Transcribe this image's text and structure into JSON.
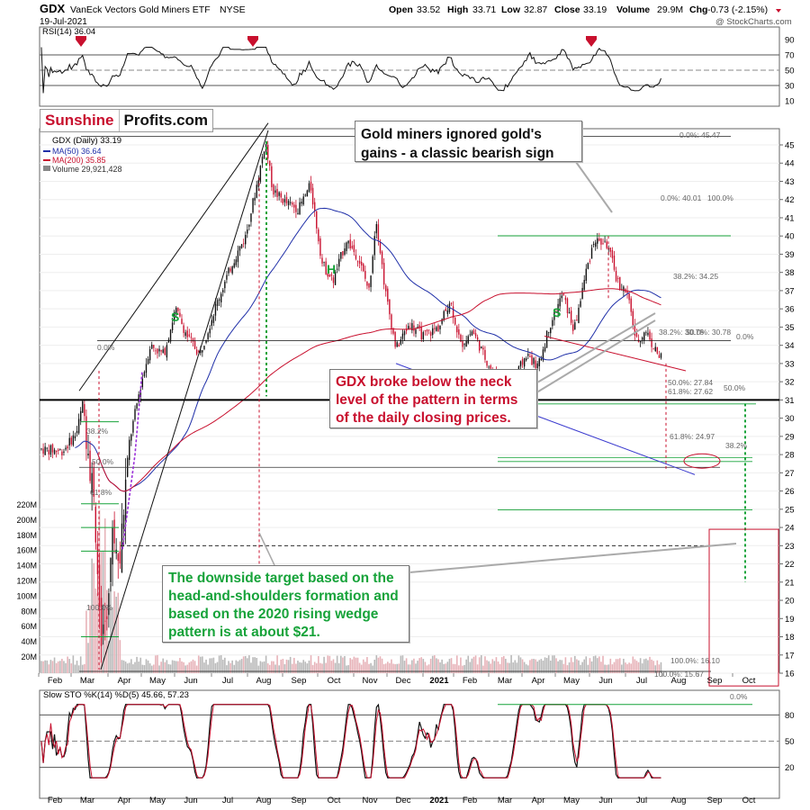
{
  "header": {
    "ticker": "GDX",
    "name": "VanEck Vectors Gold Miners ETF",
    "exchange": "NYSE",
    "date": "19-Jul-2021",
    "open_label": "Open",
    "open": "33.52",
    "high_label": "High",
    "high": "33.71",
    "low_label": "Low",
    "low": "32.87",
    "close_label": "Close",
    "close": "33.19",
    "volume_label": "Volume",
    "volume": "29.9M",
    "chg_label": "Chg",
    "chg": "-0.73 (-2.15%)",
    "watermark": "@ StockCharts.com"
  },
  "logo": {
    "part1": "Sunshine",
    "part2": "Profits.com"
  },
  "legends": {
    "rsi": "RSI(14) 36.04",
    "main": "GDX (Daily) 33.19",
    "ma50": "MA(50) 36.64",
    "ma200": "MA(200) 35.85",
    "volume": "Volume 29,921,428",
    "sto": "Slow STO %K(14) %D(5) 45.66, 57.23"
  },
  "callouts": {
    "top": "Gold miners ignored gold's gains - a classic bearish sign",
    "mid": "GDX broke below the neck level of the pattern in terms of the daily closing prices.",
    "bottom": "The downside target based on the head-and-shoulders formation and based on the 2020 rising wedge pattern is at about $21."
  },
  "pattern_labels": [
    "S",
    "H",
    "S"
  ],
  "fib_labels": {
    "a1": "0.0%: 45.47",
    "a2": "0.0%: 40.01",
    "a3": "100.0%",
    "a4": "38.2%: 34.25",
    "a5": "38.2%: 30.78",
    "a6": "50.0%: 30.78",
    "a7": "0.0%",
    "a8": "50.0%: 27.84",
    "a9": "61.8%: 27.62",
    "a10": "50.0%",
    "a11": "61.8%: 24.97",
    "a12": "38.2%",
    "a13": "100.0%: 16.10",
    "a14": "100.0%: 15.67",
    "b1": "0.0%",
    "b2": "38.2%",
    "b3": "50.0%",
    "b4": "61.8%",
    "b5": "100.0%",
    "sto_fib": "0.0%"
  },
  "colors": {
    "up": "#111111",
    "down": "#c8102e",
    "ma50": "#1f2fa8",
    "ma200": "#c8102e",
    "green": "#17a33a",
    "purple": "#9b30d9"
  },
  "chart_data": {
    "type": "candlestick",
    "title": "GDX VanEck Vectors Gold Miners ETF NYSE",
    "x_ticks": [
      "Feb",
      "Mar",
      "Apr",
      "May",
      "Jun",
      "Jul",
      "Aug",
      "Sep",
      "Oct",
      "Nov",
      "Dec",
      "2021",
      "Feb",
      "Mar",
      "Apr",
      "May",
      "Jun",
      "Jul",
      "Aug",
      "Sep",
      "Oct"
    ],
    "price_axis": {
      "ticks": [
        16,
        17,
        18,
        19,
        20,
        21,
        22,
        23,
        24,
        25,
        26,
        27,
        28,
        29,
        30,
        31,
        32,
        33,
        34,
        35,
        36,
        37,
        38,
        39,
        40,
        41,
        42,
        43,
        44,
        45
      ]
    },
    "volume_axis": {
      "ticks": [
        "20M",
        "40M",
        "60M",
        "80M",
        "100M",
        "120M",
        "140M",
        "160M",
        "180M",
        "200M",
        "220M"
      ]
    },
    "rsi_axis": {
      "ticks": [
        10,
        30,
        50,
        70,
        90
      ]
    },
    "sto_axis": {
      "ticks": [
        20,
        50,
        80
      ]
    },
    "closes_monthly": [
      {
        "x": "Feb 2020",
        "close": 28.5
      },
      {
        "x": "Mar 2020",
        "close": 22.0
      },
      {
        "x": "Apr 2020",
        "close": 31.5
      },
      {
        "x": "May 2020",
        "close": 33.5
      },
      {
        "x": "Jun 2020",
        "close": 36.0
      },
      {
        "x": "Jul 2020",
        "close": 42.0
      },
      {
        "x": "Aug 2020",
        "close": 43.0
      },
      {
        "x": "Sep 2020",
        "close": 38.5
      },
      {
        "x": "Oct 2020",
        "close": 39.0
      },
      {
        "x": "Nov 2020",
        "close": 35.0
      },
      {
        "x": "Dec 2020",
        "close": 36.0
      },
      {
        "x": "Jan 2021",
        "close": 35.5
      },
      {
        "x": "Feb 2021",
        "close": 33.5
      },
      {
        "x": "Mar 2021",
        "close": 32.5
      },
      {
        "x": "Apr 2021",
        "close": 36.5
      },
      {
        "x": "May 2021",
        "close": 39.5
      },
      {
        "x": "Jun 2021",
        "close": 35.0
      },
      {
        "x": "Jul 2021",
        "close": 33.19
      }
    ]
  }
}
